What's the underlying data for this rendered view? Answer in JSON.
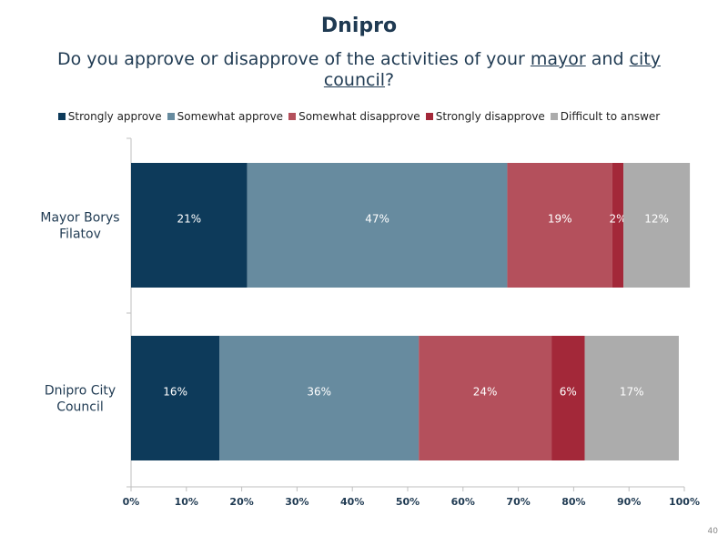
{
  "title": "Dnipro",
  "subtitle": {
    "part1": "Do you approve or disapprove of the activities of your ",
    "mayor": "mayor",
    "part2": " and ",
    "city": "city",
    "part3": " ",
    "council": "council",
    "part4": "?"
  },
  "page_number": "40",
  "chart_data": {
    "type": "bar",
    "orientation": "horizontal",
    "stacked": true,
    "categories": [
      "Mayor Borys Filatov",
      "Dnipro City Council"
    ],
    "series": [
      {
        "name": "Strongly approve",
        "color": "#0d3a5a",
        "values": [
          21,
          16
        ],
        "labels": [
          "21%",
          "16%"
        ]
      },
      {
        "name": "Somewhat approve",
        "color": "#678b9f",
        "values": [
          47,
          36
        ],
        "labels": [
          "47%",
          "36%"
        ]
      },
      {
        "name": "Somewhat disapprove",
        "color": "#b4505c",
        "values": [
          19,
          24
        ],
        "labels": [
          "19%",
          "24%"
        ]
      },
      {
        "name": "Strongly disapprove",
        "color": "#a32839",
        "values": [
          2,
          6
        ],
        "labels": [
          "2%",
          "6%"
        ]
      },
      {
        "name": "Difficult to answer",
        "color": "#acacac",
        "values": [
          12,
          17
        ],
        "labels": [
          "12%",
          "17%"
        ]
      }
    ],
    "xlim": [
      0,
      100
    ],
    "xticks": [
      "0%",
      "10%",
      "20%",
      "30%",
      "40%",
      "50%",
      "60%",
      "70%",
      "80%",
      "90%",
      "100%"
    ],
    "legend_position": "top",
    "grid": false
  }
}
